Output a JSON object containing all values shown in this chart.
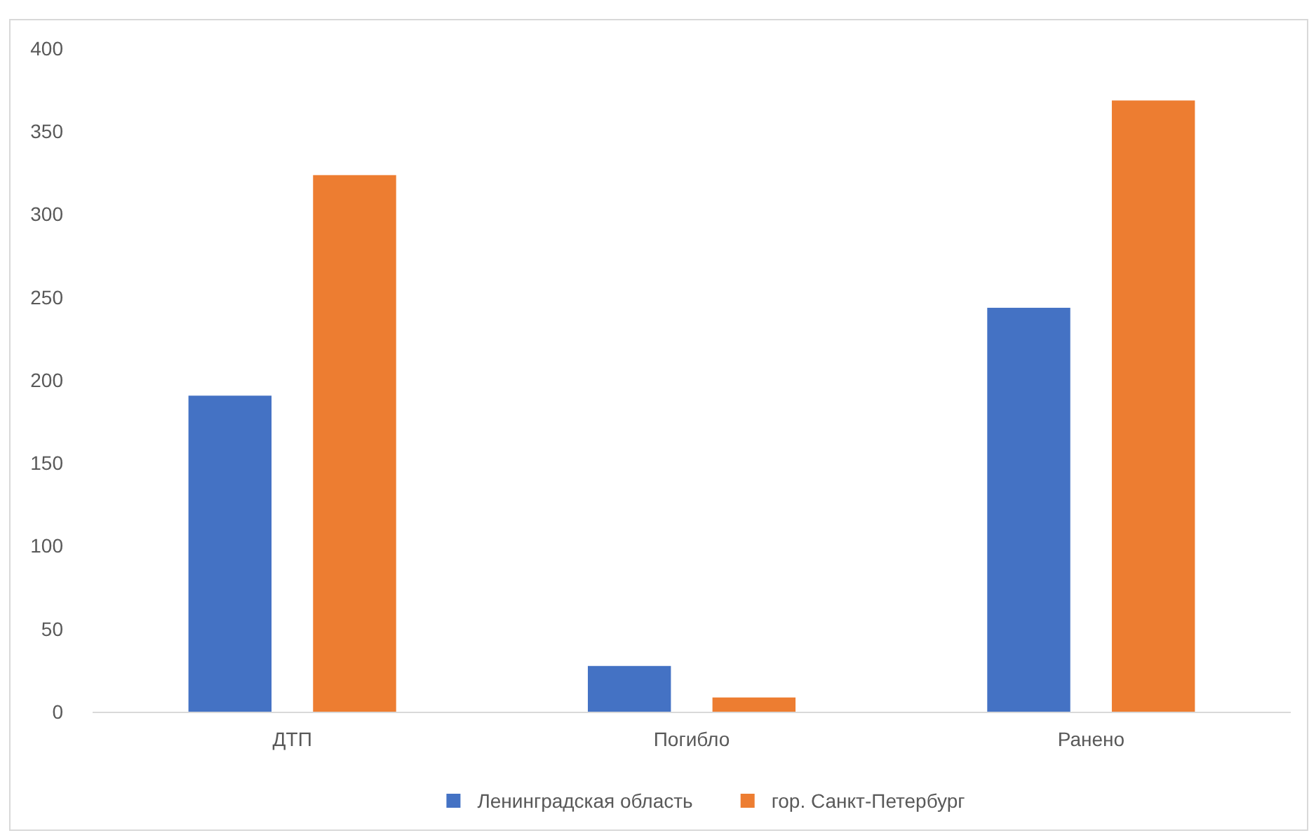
{
  "chart_data": {
    "type": "bar",
    "categories": [
      "ДТП",
      "Погибло",
      "Ранено"
    ],
    "series": [
      {
        "name": "Ленинградская область",
        "color": "#4472c4",
        "values": [
          191,
          28,
          244
        ]
      },
      {
        "name": "гор. Санкт-Петербург",
        "color": "#ed7d31",
        "values": [
          324,
          9,
          369
        ]
      }
    ],
    "ylim": [
      0,
      400
    ],
    "yticks": [
      0,
      50,
      100,
      150,
      200,
      250,
      300,
      350,
      400
    ],
    "grid": false,
    "legend": "bottom"
  }
}
